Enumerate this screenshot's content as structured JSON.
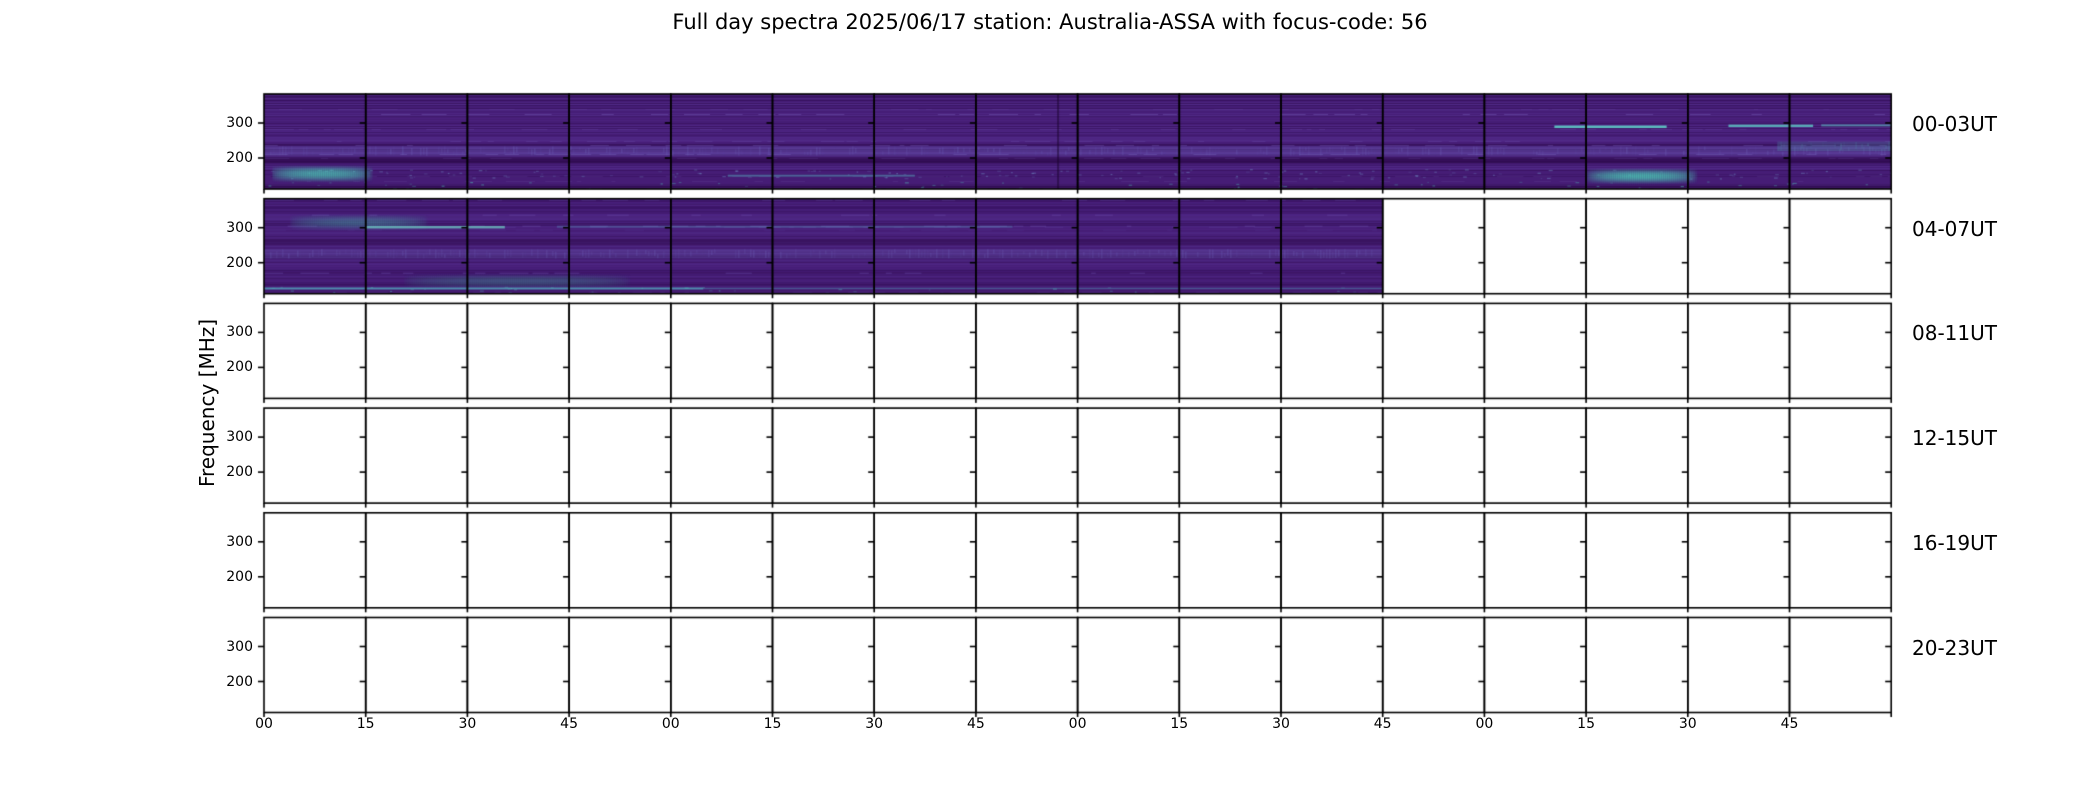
{
  "title": "Full day spectra 2025/06/17 station: Australia-ASSA with focus-code: 56",
  "ylabel": "Frequency [MHz]",
  "colors": {
    "background": "#ffffff",
    "axis": "#000000",
    "text": "#000000",
    "spectrogram_base": "#461d76",
    "spectrogram_dark": "#320a52",
    "spectrogram_light": "#6a55ab",
    "spectrogram_bright_teal": "#4cc3b2",
    "speckle_blue": "#7d9ed2",
    "empty_panel": "#ffffff"
  },
  "chart_data": {
    "type": "heatmap",
    "subtype": "solar-radio-spectrogram-grid",
    "colormap": "viridis",
    "station": "Australia-ASSA",
    "date": "2025/06/17",
    "focus_code": "56",
    "panel_minutes": 15,
    "panels_per_row": 16,
    "hours_per_row": 4,
    "y_ticks_mhz": [
      300,
      200
    ],
    "y_tick_labels": [
      "300",
      "200"
    ],
    "x_tick_labels": [
      "00",
      "15",
      "30",
      "45",
      "00",
      "15",
      "30",
      "45",
      "00",
      "15",
      "30",
      "45",
      "00",
      "15",
      "30",
      "45"
    ],
    "data_coverage": "Data present 00:00-03:59 UT (full row) and 04:00-06:45 UT (partial row); panels blank 06:45-24:00 UT",
    "rows": [
      {
        "label": "00-03UT",
        "panels": 16,
        "filled_panels": 16,
        "features": [
          {
            "kind": "hband",
            "x0": 0,
            "x1": 1,
            "y0": 0.55,
            "y1": 0.65,
            "color": "110,100,185",
            "alpha": 0.3,
            "speckle": true
          },
          {
            "kind": "hband",
            "x0": 0,
            "x1": 1,
            "y0": 0.66,
            "y1": 0.73,
            "color": "40,6,64",
            "alpha": 0.4
          },
          {
            "kind": "hband",
            "x0": 0,
            "x1": 1,
            "y0": 0.95,
            "y1": 1.0,
            "color": "40,6,64",
            "alpha": 0.35
          },
          {
            "kind": "speckles",
            "x0": 0,
            "x1": 1,
            "y0": 0.79,
            "y1": 0.89,
            "color": "120,160,210",
            "alpha": 0.45,
            "density": 0.1
          },
          {
            "kind": "glow",
            "x0": 0.004,
            "x1": 0.066,
            "y0": 0.74,
            "y1": 0.93,
            "color": "75,200,180",
            "alpha": 0.95
          },
          {
            "kind": "glow",
            "x0": 0.812,
            "x1": 0.88,
            "y0": 0.77,
            "y1": 0.95,
            "color": "75,200,180",
            "alpha": 0.95
          },
          {
            "kind": "line",
            "x0": 0.793,
            "x1": 0.862,
            "y": 0.345,
            "w": 2.5,
            "color": "95,205,200",
            "alpha": 0.9
          },
          {
            "kind": "line",
            "x0": 0.9,
            "x1": 0.952,
            "y": 0.335,
            "w": 2.5,
            "color": "95,205,200",
            "alpha": 0.8
          },
          {
            "kind": "line",
            "x0": 0.957,
            "x1": 1.0,
            "y": 0.33,
            "w": 2,
            "color": "95,205,200",
            "alpha": 0.55
          },
          {
            "kind": "hband",
            "x0": 0.93,
            "x1": 1.0,
            "y0": 0.5,
            "y1": 0.6,
            "color": "80,150,170",
            "alpha": 0.25,
            "speckle": true
          },
          {
            "kind": "vline",
            "x": 0.488,
            "w": 2,
            "color": "25,3,45",
            "alpha": 0.5
          },
          {
            "kind": "line",
            "x0": 0.285,
            "x1": 0.4,
            "y": 0.86,
            "w": 2,
            "color": "90,185,200",
            "alpha": 0.45
          },
          {
            "kind": "speckles",
            "x0": 0,
            "x1": 1,
            "y0": 0.92,
            "y1": 1.0,
            "color": "80,200,185",
            "alpha": 0.5,
            "density": 0.05
          }
        ]
      },
      {
        "label": "04-07UT",
        "panels": 16,
        "filled_panels": 11,
        "features": [
          {
            "kind": "hband",
            "x0": 0,
            "x1": 1,
            "y0": 0.53,
            "y1": 0.63,
            "color": "110,100,185",
            "alpha": 0.28,
            "speckle": true
          },
          {
            "kind": "hband",
            "x0": 0,
            "x1": 1,
            "y0": 0.42,
            "y1": 0.49,
            "color": "40,6,64",
            "alpha": 0.35
          },
          {
            "kind": "hband",
            "x0": 0,
            "x1": 1,
            "y0": 0.95,
            "y1": 1.0,
            "color": "60,20,90",
            "alpha": 0.3
          },
          {
            "kind": "glow",
            "x0": 0.015,
            "x1": 0.1,
            "y0": 0.15,
            "y1": 0.34,
            "color": "70,165,160",
            "alpha": 0.5
          },
          {
            "kind": "line",
            "x0": 0.062,
            "x1": 0.148,
            "y": 0.3,
            "w": 2.5,
            "color": "110,200,195",
            "alpha": 0.75
          },
          {
            "kind": "glow",
            "x0": 0.085,
            "x1": 0.225,
            "y0": 0.78,
            "y1": 0.95,
            "color": "60,150,140",
            "alpha": 0.45
          },
          {
            "kind": "line",
            "x0": 0.0,
            "x1": 0.27,
            "y": 0.945,
            "w": 2,
            "color": "85,190,200",
            "alpha": 0.7
          },
          {
            "kind": "line",
            "x0": 0.27,
            "x1": 0.687,
            "y": 0.945,
            "w": 1.5,
            "color": "85,190,200",
            "alpha": 0.35
          },
          {
            "kind": "line",
            "x0": 0.18,
            "x1": 0.46,
            "y": 0.295,
            "w": 2,
            "color": "95,180,205",
            "alpha": 0.3
          },
          {
            "kind": "speckles",
            "x0": 0,
            "x1": 0.687,
            "y0": 0.92,
            "y1": 1.0,
            "color": "80,200,185",
            "alpha": 0.45,
            "density": 0.05
          }
        ]
      },
      {
        "label": "08-11UT",
        "panels": 16,
        "filled_panels": 0,
        "features": []
      },
      {
        "label": "12-15UT",
        "panels": 16,
        "filled_panels": 0,
        "features": []
      },
      {
        "label": "16-19UT",
        "panels": 16,
        "filled_panels": 0,
        "features": []
      },
      {
        "label": "20-23UT",
        "panels": 16,
        "filled_panels": 0,
        "features": []
      }
    ]
  }
}
